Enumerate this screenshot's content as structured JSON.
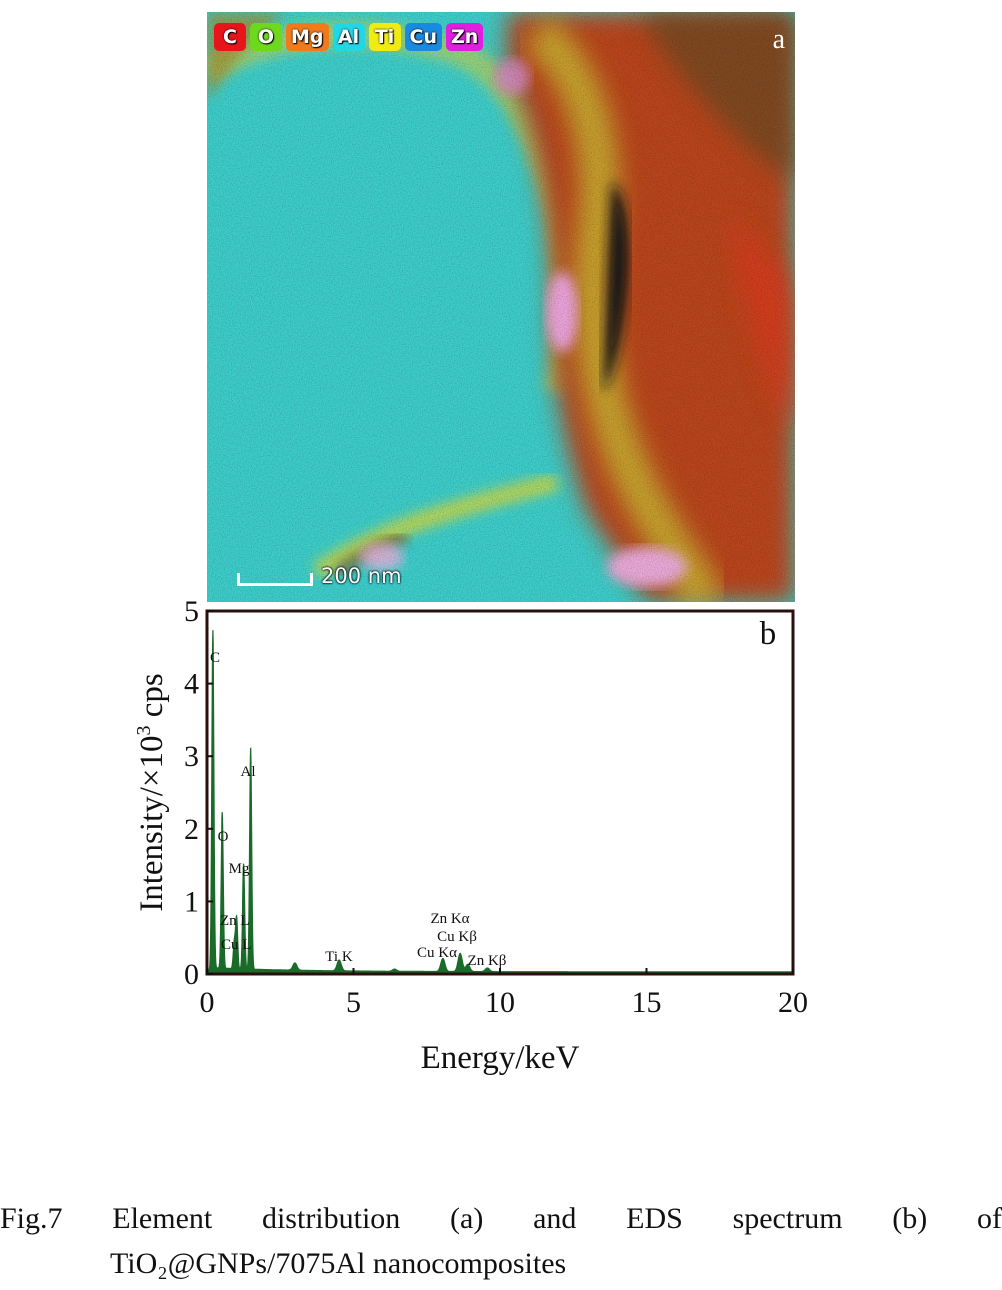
{
  "panel_a": {
    "letter": "a",
    "legend": [
      {
        "label": "C",
        "color": "#e8141c"
      },
      {
        "label": "O",
        "color": "#6ed81e"
      },
      {
        "label": "Mg",
        "color": "#f07a1c"
      },
      {
        "label": "Al",
        "color": "#22d6e6"
      },
      {
        "label": "Ti",
        "color": "#f0ec12"
      },
      {
        "label": "Cu",
        "color": "#1a8ae0"
      },
      {
        "label": "Zn",
        "color": "#e01ee0"
      }
    ],
    "scale_bar": "200 nm"
  },
  "chart_data": {
    "type": "line",
    "panel_letter": "b",
    "xlabel": "Energy/keV",
    "ylabel_prefix": "Intensity/×10",
    "ylabel_superscript": "3",
    "ylabel_suffix": " cps",
    "xlim": [
      0,
      20
    ],
    "ylim": [
      0,
      5
    ],
    "xticks": [
      "0",
      "5",
      "10",
      "15",
      "20"
    ],
    "yticks": [
      "0",
      "1",
      "2",
      "3",
      "4",
      "5"
    ],
    "line_color": "#1a6b2a",
    "peaks": [
      {
        "x": 0.2,
        "y": 4.65,
        "label": "C"
      },
      {
        "x": 0.52,
        "y": 2.15,
        "label": "O"
      },
      {
        "x": 1.01,
        "y": 0.7,
        "label": "Zn L"
      },
      {
        "x": 0.93,
        "y": 0.35,
        "label": "Cu L"
      },
      {
        "x": 1.25,
        "y": 1.45,
        "label": "Mg"
      },
      {
        "x": 1.49,
        "y": 3.05,
        "label": "Al"
      },
      {
        "x": 4.51,
        "y": 0.15,
        "label": "Ti K"
      },
      {
        "x": 8.05,
        "y": 0.18,
        "label": "Cu Kα"
      },
      {
        "x": 8.64,
        "y": 0.25,
        "label": "Zn Kα"
      },
      {
        "x": 8.9,
        "y": 0.1,
        "label": "Cu Kβ"
      },
      {
        "x": 9.57,
        "y": 0.05,
        "label": "Zn Kβ"
      },
      {
        "x": 3.0,
        "y": 0.1,
        "label": ""
      },
      {
        "x": 6.4,
        "y": 0.03,
        "label": ""
      }
    ]
  },
  "caption": {
    "line1_words": [
      "Fig.7",
      "Element",
      "distribution",
      "(a)",
      "and",
      "EDS",
      "spectrum",
      "(b)",
      "of"
    ],
    "line2": "TiO₂@GNPs/7075Al nanocomposites"
  }
}
